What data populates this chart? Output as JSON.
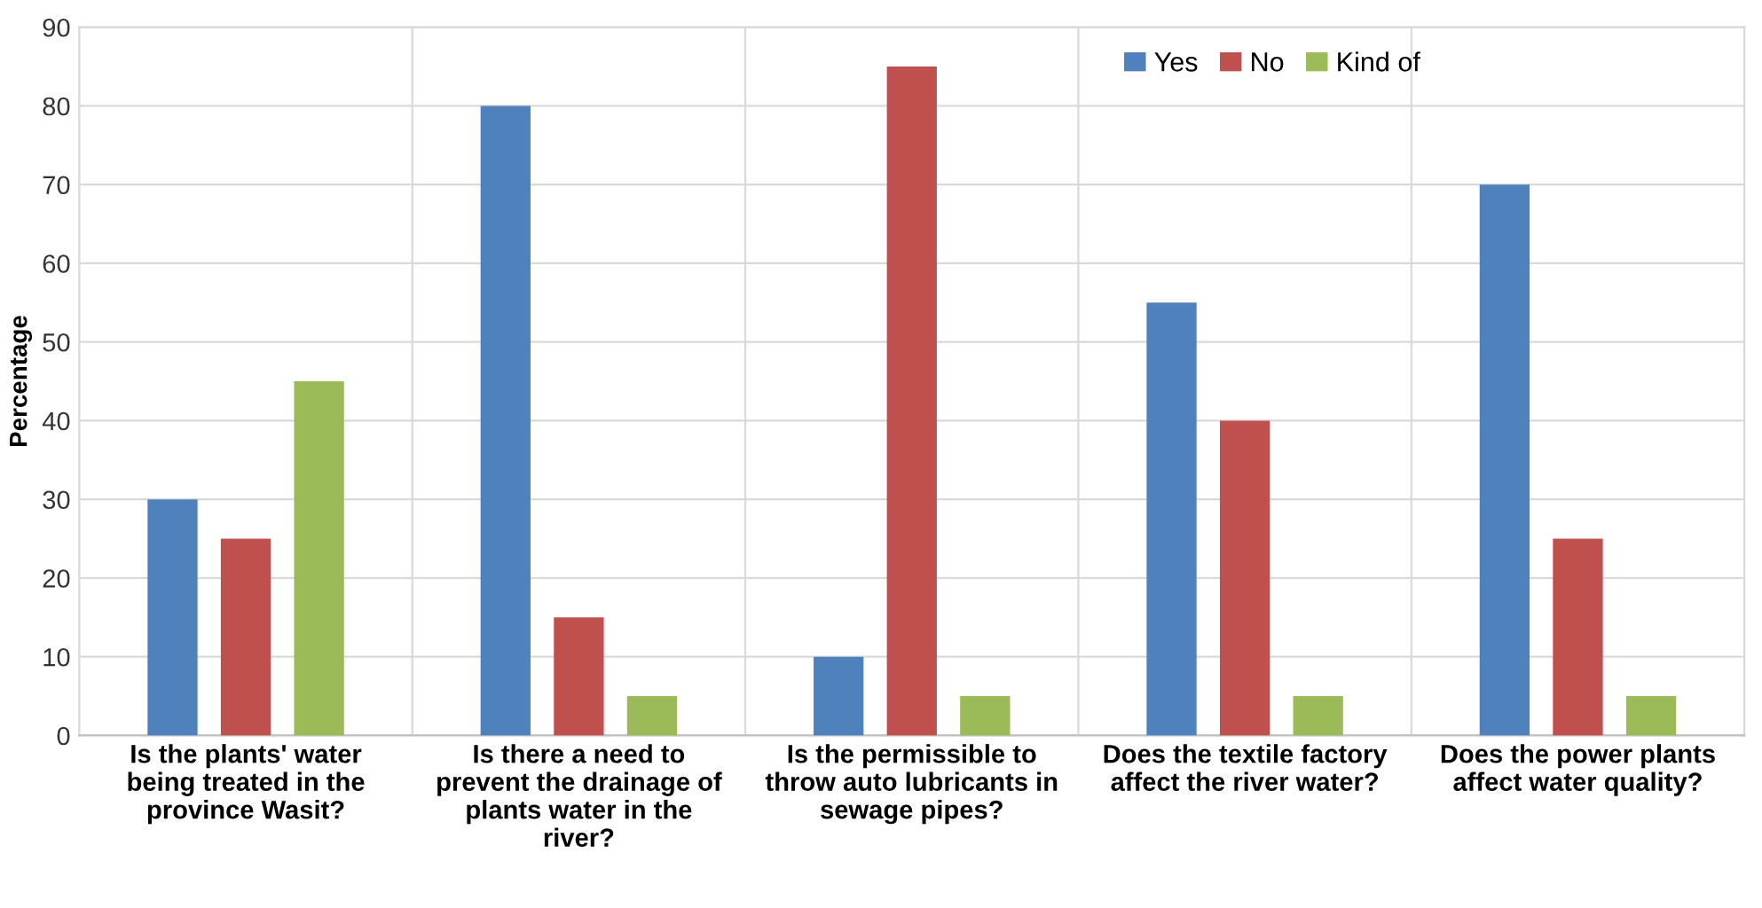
{
  "chart_data": {
    "type": "bar",
    "ylabel": "Percentage",
    "categories": [
      "Is the plants' water\nbeing treated in the\nprovince Wasit?",
      "Is there a need to\nprevent the drainage of\nplants water in the\nriver?",
      "Is the permissible to\nthrow auto lubricants in\nsewage pipes?",
      "Does the textile factory\naffect the river water?",
      "Does the power plants\naffect water quality?"
    ],
    "series": [
      {
        "name": "Yes",
        "color": "#4f81bd",
        "values": [
          30,
          80,
          10,
          55,
          70
        ]
      },
      {
        "name": "No",
        "color": "#c0504d",
        "values": [
          25,
          15,
          85,
          40,
          25
        ]
      },
      {
        "name": "Kind of",
        "color": "#9bbb59",
        "values": [
          45,
          5,
          5,
          5,
          5
        ]
      }
    ],
    "ylim": [
      0,
      90
    ],
    "yticks": [
      0,
      10,
      20,
      30,
      40,
      50,
      60,
      70,
      80,
      90
    ],
    "grid": true,
    "legend": "top right"
  }
}
